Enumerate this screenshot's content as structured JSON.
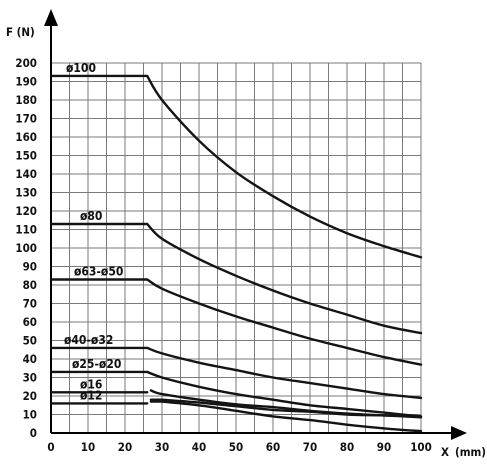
{
  "chart_data": {
    "type": "line",
    "ylabel": "F (N)",
    "xlabel": "X",
    "xlabel_unit": "(mm)",
    "xlim": [
      0,
      100
    ],
    "ylim": [
      0,
      200
    ],
    "xticks": [
      0,
      10,
      20,
      30,
      40,
      50,
      60,
      70,
      80,
      90,
      100
    ],
    "yticks": [
      0,
      10,
      20,
      30,
      40,
      50,
      60,
      70,
      80,
      90,
      100,
      110,
      120,
      130,
      140,
      150,
      160,
      170,
      180,
      190,
      200
    ],
    "grid": true,
    "series": [
      {
        "name": "ø100",
        "x": [
          0,
          26,
          30,
          40,
          50,
          60,
          70,
          80,
          90,
          100
        ],
        "y": [
          193,
          193,
          180,
          158,
          141,
          128,
          117,
          108,
          101,
          95
        ]
      },
      {
        "name": "ø80",
        "x": [
          0,
          26,
          30,
          40,
          50,
          60,
          70,
          80,
          90,
          100
        ],
        "y": [
          113,
          113,
          105,
          94,
          85,
          77,
          70,
          64,
          58,
          54
        ]
      },
      {
        "name": "ø63-ø50",
        "x": [
          0,
          26,
          30,
          40,
          50,
          60,
          70,
          80,
          90,
          100
        ],
        "y": [
          83,
          83,
          78,
          70,
          63,
          57,
          51,
          46,
          41,
          37
        ]
      },
      {
        "name": "ø40-ø32",
        "x": [
          0,
          26,
          30,
          40,
          50,
          60,
          70,
          80,
          90,
          100
        ],
        "y": [
          46,
          46,
          43,
          38,
          34,
          30,
          27,
          24,
          21,
          19
        ]
      },
      {
        "name": "ø25-ø20",
        "x": [
          0,
          26,
          30,
          40,
          50,
          60,
          70,
          80,
          90,
          100
        ],
        "y": [
          33,
          33,
          30,
          25,
          21,
          18,
          15,
          13,
          11,
          9
        ]
      },
      {
        "name": "ø16",
        "x": [
          0,
          26
        ],
        "y": [
          22,
          22
        ]
      },
      {
        "name": "ø12",
        "x": [
          0,
          26
        ],
        "y": [
          16,
          16
        ]
      }
    ],
    "extra_curves": [
      {
        "x": [
          27,
          30,
          40,
          50,
          60,
          70,
          80,
          90,
          100
        ],
        "y": [
          23,
          21,
          18,
          15.5,
          14,
          12,
          10.5,
          9.5,
          8.5
        ]
      },
      {
        "x": [
          27,
          30,
          40,
          50,
          60,
          70,
          80,
          90,
          100
        ],
        "y": [
          18,
          18,
          16.5,
          14.5,
          12.5,
          11.5,
          10,
          9.5,
          9
        ]
      },
      {
        "x": [
          27,
          30,
          40,
          50,
          60,
          70,
          80,
          90,
          100
        ],
        "y": [
          17,
          17,
          15,
          12,
          9,
          7,
          4.5,
          2.5,
          1
        ]
      }
    ]
  }
}
